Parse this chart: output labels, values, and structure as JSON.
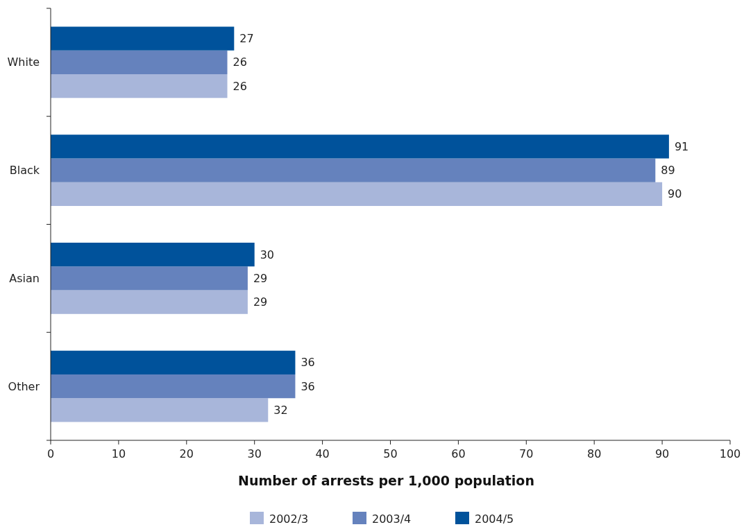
{
  "chart_data": {
    "type": "bar",
    "orientation": "horizontal",
    "xlabel": "Number of arrests per 1,000 population",
    "categories": [
      "White",
      "Black",
      "Asian",
      "Other"
    ],
    "series": [
      {
        "name": "2002/3",
        "color": "#a8b6da",
        "values": [
          26,
          90,
          29,
          32
        ]
      },
      {
        "name": "2003/4",
        "color": "#6582bd",
        "values": [
          26,
          89,
          29,
          36
        ]
      },
      {
        "name": "2004/5",
        "color": "#00529b",
        "values": [
          27,
          91,
          30,
          36
        ]
      }
    ],
    "xlim": [
      0,
      100
    ],
    "xticks": [
      0,
      10,
      20,
      30,
      40,
      50,
      60,
      70,
      80,
      90,
      100
    ],
    "data_labels": true,
    "grid": false,
    "legend": "bottom"
  }
}
